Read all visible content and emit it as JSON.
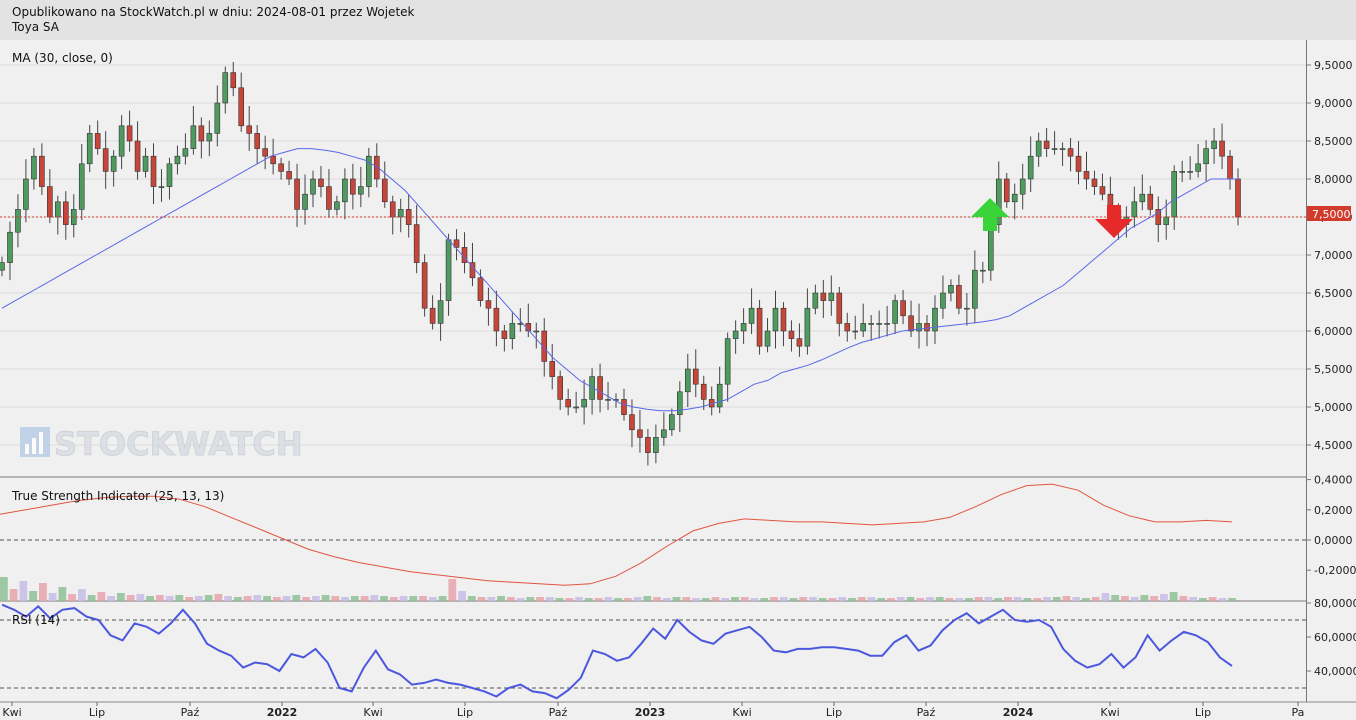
{
  "header": {
    "published": "Opublikowano na StockWatch.pl w dniu: 2024-08-01 przez Wojetek",
    "instrument": "Toya SA"
  },
  "watermark": "STOCKWATCH",
  "colors": {
    "up": "#4f9a5f",
    "down": "#c8453a",
    "ma": "#5a68e8",
    "tsi": "#e0553f",
    "rsi": "#4b57dd",
    "price_line": "#d03a2c",
    "price_tag": "#d23a2c"
  },
  "chart_data": [
    {
      "type": "candlestick",
      "title": "MA (30, close, 0)",
      "ylim": [
        4.2,
        9.6
      ],
      "yticks": [
        "4,5000",
        "5,0000",
        "5,5000",
        "6,0000",
        "6,5000",
        "7,0000",
        "7,5000",
        "8,0000",
        "8,5000",
        "9,0000",
        "9,5000"
      ],
      "x_labels": [
        "Kwi",
        "Lip",
        "Paź",
        "2022",
        "Kwi",
        "Lip",
        "Paź",
        "2023",
        "Kwi",
        "Lip",
        "Paź",
        "2024",
        "Kwi",
        "Lip",
        "Pa"
      ],
      "last_price": 7.5,
      "last_price_label": "7,5000",
      "close": [
        6.9,
        7.3,
        7.6,
        8.0,
        8.3,
        7.9,
        7.5,
        7.7,
        7.4,
        7.6,
        8.2,
        8.6,
        8.4,
        8.1,
        8.3,
        8.7,
        8.5,
        8.1,
        8.3,
        7.9,
        7.9,
        8.2,
        8.3,
        8.4,
        8.7,
        8.5,
        8.6,
        9.0,
        9.4,
        9.2,
        8.7,
        8.6,
        8.4,
        8.3,
        8.2,
        8.1,
        8.0,
        7.6,
        7.8,
        8.0,
        7.9,
        7.6,
        7.7,
        8.0,
        7.8,
        7.9,
        8.3,
        8.0,
        7.7,
        7.5,
        7.6,
        7.4,
        6.9,
        6.3,
        6.1,
        6.4,
        7.2,
        7.1,
        6.9,
        6.7,
        6.4,
        6.3,
        6.0,
        5.9,
        6.1,
        6.1,
        6.0,
        6.0,
        5.6,
        5.4,
        5.1,
        5.0,
        5.0,
        5.1,
        5.4,
        5.1,
        5.1,
        5.1,
        4.9,
        4.7,
        4.6,
        4.4,
        4.6,
        4.7,
        4.9,
        5.2,
        5.5,
        5.3,
        5.1,
        5.0,
        5.3,
        5.9,
        6.0,
        6.1,
        6.3,
        5.8,
        6.0,
        6.3,
        6.0,
        5.9,
        5.8,
        6.3,
        6.5,
        6.4,
        6.5,
        6.1,
        6.0,
        6.0,
        6.1,
        6.1,
        6.1,
        6.1,
        6.4,
        6.2,
        6.0,
        6.1,
        6.0,
        6.3,
        6.5,
        6.6,
        6.3,
        6.3,
        6.8,
        6.8,
        7.4,
        8.0,
        7.7,
        7.8,
        8.0,
        8.3,
        8.5,
        8.4,
        8.4,
        8.4,
        8.3,
        8.1,
        8.0,
        7.9,
        7.8,
        7.6,
        7.4,
        7.5,
        7.7,
        7.8,
        7.6,
        7.4,
        7.5,
        8.1,
        8.1,
        8.1,
        8.2,
        8.4,
        8.5,
        8.3,
        8.0,
        7.5
      ],
      "ma": [
        6.3,
        6.4,
        6.5,
        6.6,
        6.7,
        6.8,
        6.9,
        7.0,
        7.1,
        7.2,
        7.3,
        7.4,
        7.5,
        7.6,
        7.7,
        7.8,
        7.9,
        8.0,
        8.1,
        8.2,
        8.3,
        8.35,
        8.4,
        8.4,
        8.38,
        8.35,
        8.3,
        8.25,
        8.15,
        8.0,
        7.85,
        7.65,
        7.45,
        7.25,
        7.05,
        6.85,
        6.65,
        6.45,
        6.25,
        6.05,
        5.85,
        5.65,
        5.5,
        5.35,
        5.25,
        5.15,
        5.05,
        5.0,
        4.97,
        4.95,
        4.95,
        4.97,
        5.0,
        5.05,
        5.1,
        5.2,
        5.3,
        5.35,
        5.45,
        5.5,
        5.55,
        5.62,
        5.7,
        5.78,
        5.85,
        5.9,
        5.95,
        6.0,
        6.02,
        6.04,
        6.06,
        6.08,
        6.1,
        6.12,
        6.15,
        6.2,
        6.3,
        6.4,
        6.5,
        6.6,
        6.75,
        6.9,
        7.05,
        7.2,
        7.35,
        7.45,
        7.55,
        7.7,
        7.8,
        7.9,
        8.0,
        8.0,
        8.0
      ]
    },
    {
      "type": "line",
      "title": "True Strength Indicator (25, 13, 13)",
      "ylim": [
        -0.3,
        0.4
      ],
      "yticks": [
        "-0,2000",
        "0,0000",
        "0,2000",
        "0,4000"
      ],
      "values": [
        0.17,
        0.2,
        0.23,
        0.26,
        0.28,
        0.29,
        0.29,
        0.27,
        0.22,
        0.15,
        0.08,
        0.01,
        -0.06,
        -0.11,
        -0.15,
        -0.18,
        -0.21,
        -0.23,
        -0.25,
        -0.27,
        -0.28,
        -0.29,
        -0.3,
        -0.29,
        -0.24,
        -0.15,
        -0.04,
        0.06,
        0.11,
        0.14,
        0.13,
        0.12,
        0.12,
        0.11,
        0.1,
        0.11,
        0.12,
        0.15,
        0.22,
        0.3,
        0.36,
        0.37,
        0.33,
        0.23,
        0.16,
        0.12,
        0.12,
        0.13,
        0.12
      ]
    },
    {
      "type": "line",
      "title": "RSI (14)",
      "ylim": [
        25,
        83
      ],
      "yticks": [
        "40,0000",
        "60,0000",
        "80,0000"
      ],
      "values": [
        79,
        76,
        72,
        78,
        71,
        76,
        77,
        72,
        70,
        61,
        58,
        68,
        66,
        62,
        68,
        76,
        68,
        56,
        52,
        49,
        42,
        45,
        44,
        40,
        50,
        48,
        53,
        45,
        30,
        28,
        42,
        52,
        41,
        38,
        32,
        33,
        35,
        33,
        32,
        30,
        28,
        25,
        30,
        32,
        28,
        27,
        24,
        29,
        36,
        52,
        50,
        46,
        48,
        56,
        65,
        59,
        70,
        63,
        58,
        56,
        62,
        64,
        66,
        60,
        52,
        51,
        53,
        53,
        54,
        54,
        53,
        52,
        49,
        49,
        57,
        61,
        52,
        55,
        64,
        70,
        74,
        68,
        72,
        76,
        70,
        69,
        70,
        66,
        53,
        46,
        42,
        44,
        50,
        42,
        48,
        61,
        52,
        58,
        63,
        61,
        57,
        48,
        43
      ]
    }
  ]
}
